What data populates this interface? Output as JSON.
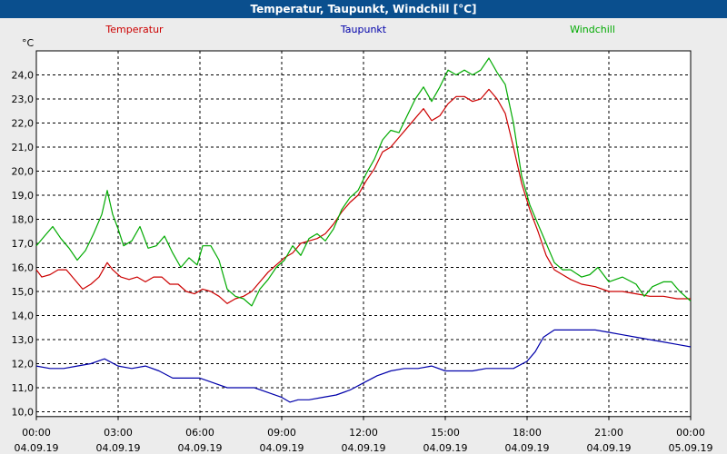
{
  "window": {
    "title": "Temperatur, Taupunkt, Windchill [°C]"
  },
  "chart_data": {
    "type": "line",
    "title": "Temperatur, Taupunkt, Windchill [°C]",
    "ylabel": "°C",
    "ylim": [
      9.8,
      25.0
    ],
    "yticks": [
      10,
      11,
      12,
      13,
      14,
      15,
      16,
      17,
      18,
      19,
      20,
      21,
      22,
      23,
      24
    ],
    "ytick_labels": [
      "10,0",
      "11,0",
      "12,0",
      "13,0",
      "14,0",
      "15,0",
      "16,0",
      "17,0",
      "18,0",
      "19,0",
      "20,0",
      "21,0",
      "22,0",
      "23,0",
      "24,0"
    ],
    "xlim": [
      0,
      24
    ],
    "xticks": [
      0,
      3,
      6,
      9,
      12,
      15,
      18,
      21,
      24
    ],
    "xtick_time_labels": [
      "00:00",
      "03:00",
      "06:00",
      "09:00",
      "12:00",
      "15:00",
      "18:00",
      "21:00",
      "00:00"
    ],
    "xtick_date_labels": [
      "04.09.19",
      "04.09.19",
      "04.09.19",
      "04.09.19",
      "04.09.19",
      "04.09.19",
      "04.09.19",
      "04.09.19",
      "05.09.19"
    ],
    "grid": true,
    "series": [
      {
        "name": "Temperatur",
        "color": "#cc0000",
        "points": [
          [
            0,
            15.9
          ],
          [
            0.2,
            15.6
          ],
          [
            0.5,
            15.7
          ],
          [
            0.8,
            15.9
          ],
          [
            1.1,
            15.9
          ],
          [
            1.4,
            15.5
          ],
          [
            1.7,
            15.1
          ],
          [
            2.0,
            15.3
          ],
          [
            2.3,
            15.6
          ],
          [
            2.6,
            16.2
          ],
          [
            2.8,
            15.9
          ],
          [
            3.1,
            15.6
          ],
          [
            3.4,
            15.5
          ],
          [
            3.7,
            15.6
          ],
          [
            4.0,
            15.4
          ],
          [
            4.3,
            15.6
          ],
          [
            4.6,
            15.6
          ],
          [
            4.9,
            15.3
          ],
          [
            5.2,
            15.3
          ],
          [
            5.5,
            15.0
          ],
          [
            5.8,
            14.9
          ],
          [
            6.1,
            15.1
          ],
          [
            6.4,
            15.0
          ],
          [
            6.7,
            14.8
          ],
          [
            7.0,
            14.5
          ],
          [
            7.3,
            14.7
          ],
          [
            7.6,
            14.8
          ],
          [
            7.9,
            15.0
          ],
          [
            8.2,
            15.4
          ],
          [
            8.5,
            15.8
          ],
          [
            8.8,
            16.1
          ],
          [
            9.1,
            16.4
          ],
          [
            9.4,
            16.6
          ],
          [
            9.7,
            17.0
          ],
          [
            10.0,
            17.1
          ],
          [
            10.3,
            17.2
          ],
          [
            10.6,
            17.4
          ],
          [
            10.9,
            17.8
          ],
          [
            11.2,
            18.3
          ],
          [
            11.5,
            18.7
          ],
          [
            11.8,
            19.0
          ],
          [
            12.1,
            19.6
          ],
          [
            12.4,
            20.1
          ],
          [
            12.7,
            20.8
          ],
          [
            13.0,
            21.0
          ],
          [
            13.3,
            21.4
          ],
          [
            13.6,
            21.8
          ],
          [
            13.9,
            22.2
          ],
          [
            14.2,
            22.6
          ],
          [
            14.5,
            22.1
          ],
          [
            14.8,
            22.3
          ],
          [
            15.1,
            22.8
          ],
          [
            15.4,
            23.1
          ],
          [
            15.7,
            23.1
          ],
          [
            16.0,
            22.9
          ],
          [
            16.3,
            23.0
          ],
          [
            16.6,
            23.4
          ],
          [
            16.9,
            23.0
          ],
          [
            17.2,
            22.4
          ],
          [
            17.5,
            21.0
          ],
          [
            17.8,
            19.5
          ],
          [
            18.1,
            18.4
          ],
          [
            18.4,
            17.5
          ],
          [
            18.7,
            16.5
          ],
          [
            19.0,
            15.9
          ],
          [
            19.3,
            15.7
          ],
          [
            19.6,
            15.5
          ],
          [
            20.0,
            15.3
          ],
          [
            20.5,
            15.2
          ],
          [
            21.0,
            15.0
          ],
          [
            21.5,
            15.0
          ],
          [
            22.0,
            14.9
          ],
          [
            22.5,
            14.8
          ],
          [
            23.0,
            14.8
          ],
          [
            23.5,
            14.7
          ],
          [
            24.0,
            14.7
          ]
        ]
      },
      {
        "name": "Taupunkt",
        "color": "#0000aa",
        "points": [
          [
            0,
            11.9
          ],
          [
            0.5,
            11.8
          ],
          [
            1.0,
            11.8
          ],
          [
            1.5,
            11.9
          ],
          [
            2.0,
            12.0
          ],
          [
            2.5,
            12.2
          ],
          [
            3.0,
            11.9
          ],
          [
            3.5,
            11.8
          ],
          [
            4.0,
            11.9
          ],
          [
            4.5,
            11.7
          ],
          [
            5.0,
            11.4
          ],
          [
            5.5,
            11.4
          ],
          [
            6.0,
            11.4
          ],
          [
            6.5,
            11.2
          ],
          [
            7.0,
            11.0
          ],
          [
            7.5,
            11.0
          ],
          [
            8.0,
            11.0
          ],
          [
            8.5,
            10.8
          ],
          [
            9.0,
            10.6
          ],
          [
            9.3,
            10.4
          ],
          [
            9.6,
            10.5
          ],
          [
            10.0,
            10.5
          ],
          [
            10.5,
            10.6
          ],
          [
            11.0,
            10.7
          ],
          [
            11.5,
            10.9
          ],
          [
            12.0,
            11.2
          ],
          [
            12.5,
            11.5
          ],
          [
            13.0,
            11.7
          ],
          [
            13.5,
            11.8
          ],
          [
            14.0,
            11.8
          ],
          [
            14.5,
            11.9
          ],
          [
            15.0,
            11.7
          ],
          [
            15.5,
            11.7
          ],
          [
            16.0,
            11.7
          ],
          [
            16.5,
            11.8
          ],
          [
            17.0,
            11.8
          ],
          [
            17.5,
            11.8
          ],
          [
            18.0,
            12.1
          ],
          [
            18.3,
            12.5
          ],
          [
            18.6,
            13.1
          ],
          [
            19.0,
            13.4
          ],
          [
            19.5,
            13.4
          ],
          [
            20.0,
            13.4
          ],
          [
            20.5,
            13.4
          ],
          [
            21.0,
            13.3
          ],
          [
            21.5,
            13.2
          ],
          [
            22.0,
            13.1
          ],
          [
            22.5,
            13.0
          ],
          [
            23.0,
            12.9
          ],
          [
            23.5,
            12.8
          ],
          [
            24.0,
            12.7
          ]
        ]
      },
      {
        "name": "Windchill",
        "color": "#00aa00",
        "points": [
          [
            0,
            16.9
          ],
          [
            0.3,
            17.3
          ],
          [
            0.6,
            17.7
          ],
          [
            0.9,
            17.2
          ],
          [
            1.2,
            16.8
          ],
          [
            1.5,
            16.3
          ],
          [
            1.8,
            16.7
          ],
          [
            2.1,
            17.4
          ],
          [
            2.4,
            18.2
          ],
          [
            2.6,
            19.2
          ],
          [
            2.8,
            18.2
          ],
          [
            3.0,
            17.6
          ],
          [
            3.2,
            16.9
          ],
          [
            3.5,
            17.1
          ],
          [
            3.8,
            17.7
          ],
          [
            4.1,
            16.8
          ],
          [
            4.4,
            16.9
          ],
          [
            4.7,
            17.3
          ],
          [
            5.0,
            16.6
          ],
          [
            5.3,
            16.0
          ],
          [
            5.6,
            16.4
          ],
          [
            5.9,
            16.1
          ],
          [
            6.1,
            16.9
          ],
          [
            6.4,
            16.9
          ],
          [
            6.7,
            16.3
          ],
          [
            7.0,
            15.1
          ],
          [
            7.3,
            14.8
          ],
          [
            7.6,
            14.7
          ],
          [
            7.9,
            14.4
          ],
          [
            8.2,
            15.1
          ],
          [
            8.5,
            15.5
          ],
          [
            8.8,
            16.0
          ],
          [
            9.1,
            16.3
          ],
          [
            9.4,
            16.9
          ],
          [
            9.7,
            16.5
          ],
          [
            10.0,
            17.2
          ],
          [
            10.3,
            17.4
          ],
          [
            10.6,
            17.1
          ],
          [
            10.9,
            17.6
          ],
          [
            11.2,
            18.4
          ],
          [
            11.5,
            18.9
          ],
          [
            11.8,
            19.2
          ],
          [
            12.1,
            19.9
          ],
          [
            12.4,
            20.5
          ],
          [
            12.7,
            21.3
          ],
          [
            13.0,
            21.7
          ],
          [
            13.3,
            21.6
          ],
          [
            13.6,
            22.3
          ],
          [
            13.9,
            23.0
          ],
          [
            14.2,
            23.5
          ],
          [
            14.5,
            22.9
          ],
          [
            14.8,
            23.5
          ],
          [
            15.1,
            24.2
          ],
          [
            15.4,
            24.0
          ],
          [
            15.7,
            24.2
          ],
          [
            16.0,
            24.0
          ],
          [
            16.3,
            24.2
          ],
          [
            16.6,
            24.7
          ],
          [
            16.9,
            24.1
          ],
          [
            17.2,
            23.6
          ],
          [
            17.5,
            22.0
          ],
          [
            17.8,
            19.8
          ],
          [
            18.1,
            18.6
          ],
          [
            18.4,
            17.8
          ],
          [
            18.7,
            17.0
          ],
          [
            19.0,
            16.2
          ],
          [
            19.3,
            15.9
          ],
          [
            19.6,
            15.9
          ],
          [
            20.0,
            15.6
          ],
          [
            20.3,
            15.7
          ],
          [
            20.6,
            16.0
          ],
          [
            21.0,
            15.4
          ],
          [
            21.5,
            15.6
          ],
          [
            22.0,
            15.3
          ],
          [
            22.3,
            14.8
          ],
          [
            22.6,
            15.2
          ],
          [
            23.0,
            15.4
          ],
          [
            23.3,
            15.4
          ],
          [
            23.6,
            15.0
          ],
          [
            24.0,
            14.6
          ]
        ]
      }
    ]
  }
}
